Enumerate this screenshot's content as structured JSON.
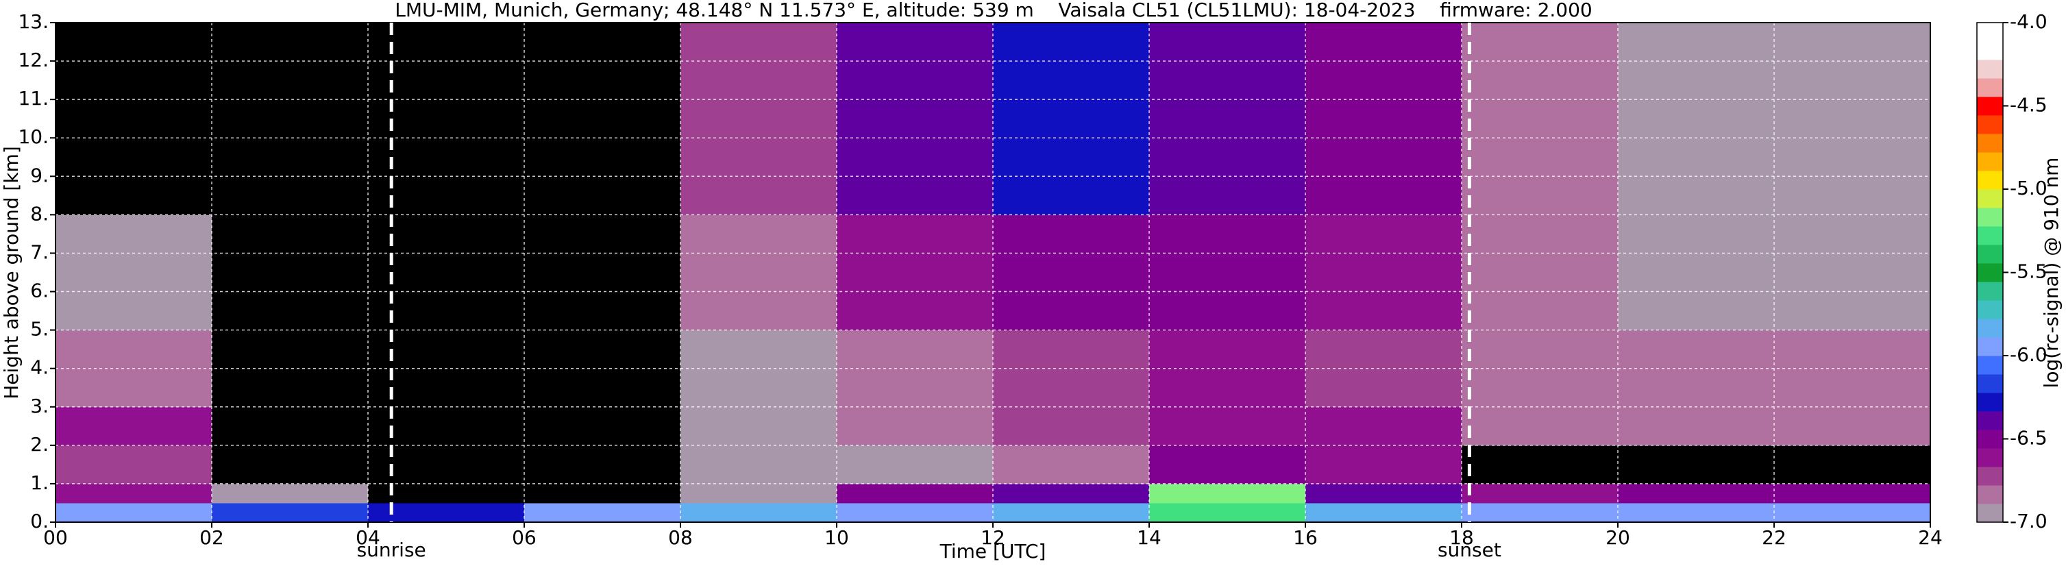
{
  "chart_data": {
    "type": "heatmap",
    "title": "LMU-MIM, Munich, Germany; 48.148° N 11.573° E, altitude: 539 m    Vaisala CL51 (CL51LMU): 18-04-2023    firmware: 2.000",
    "x_label": "Time [UTC]",
    "y_label": "Height above ground [km]",
    "colorbar_label": "log(rc-signal) @ 910 nm",
    "xlim": [
      0,
      24
    ],
    "ylim": [
      0,
      13
    ],
    "xticks": [
      {
        "value": 0,
        "label": "00"
      },
      {
        "value": 2,
        "label": "02"
      },
      {
        "value": 4,
        "label": "04"
      },
      {
        "value": 6,
        "label": "06"
      },
      {
        "value": 8,
        "label": "08"
      },
      {
        "value": 10,
        "label": "10"
      },
      {
        "value": 12,
        "label": "12"
      },
      {
        "value": 14,
        "label": "14"
      },
      {
        "value": 16,
        "label": "16"
      },
      {
        "value": 18,
        "label": "18"
      },
      {
        "value": 20,
        "label": "20"
      },
      {
        "value": 22,
        "label": "22"
      },
      {
        "value": 24,
        "label": "24"
      }
    ],
    "yticks": [
      {
        "value": 0,
        "label": "0."
      },
      {
        "value": 1,
        "label": "1."
      },
      {
        "value": 2,
        "label": "2."
      },
      {
        "value": 3,
        "label": "3."
      },
      {
        "value": 4,
        "label": "4."
      },
      {
        "value": 5,
        "label": "5."
      },
      {
        "value": 6,
        "label": "6."
      },
      {
        "value": 7,
        "label": "7."
      },
      {
        "value": 8,
        "label": "8."
      },
      {
        "value": 9,
        "label": "9."
      },
      {
        "value": 10,
        "label": "10."
      },
      {
        "value": 11,
        "label": "11."
      },
      {
        "value": 12,
        "label": "12."
      },
      {
        "value": 13,
        "label": "13."
      }
    ],
    "clim": [
      -7,
      -4
    ],
    "cticks": [
      {
        "value": -4,
        "label": "-4.0"
      },
      {
        "value": -4.5,
        "label": "-4.5"
      },
      {
        "value": -5,
        "label": "-5.0"
      },
      {
        "value": -5.5,
        "label": "-5.5"
      },
      {
        "value": -6,
        "label": "-6.0"
      },
      {
        "value": -6.5,
        "label": "-6.5"
      },
      {
        "value": -7,
        "label": "-7.0"
      }
    ],
    "colormap": [
      "#a896aa",
      "#b070a0",
      "#a04090",
      "#901090",
      "#800090",
      "#6000a0",
      "#1010c0",
      "#2040e0",
      "#4070ff",
      "#80a0ff",
      "#60b0f0",
      "#40c0c0",
      "#30c090",
      "#10a030",
      "#20c060",
      "#40e080",
      "#80f080",
      "#d0f040",
      "#ffe000",
      "#ffb000",
      "#ff8000",
      "#ff4000",
      "#ff0000",
      "#f0a0a0",
      "#f0d0d0",
      "#ffffff",
      "#ffffff"
    ],
    "under_color": "#000000",
    "x_bins": [
      0,
      2,
      4,
      6,
      8,
      10,
      12,
      14,
      16,
      18,
      20,
      22,
      24
    ],
    "y_bins": [
      0,
      0.5,
      1,
      2,
      3,
      5,
      8,
      13
    ],
    "values": [
      [
        -6.0,
        -6.2,
        -6.3,
        -6.0,
        -5.8,
        -5.9,
        -5.8,
        -5.3,
        -5.8,
        -6.0,
        -6.0,
        -5.9
      ],
      [
        -6.6,
        -6.9,
        -7.3,
        -7.2,
        -6.9,
        -6.5,
        -6.4,
        -5.2,
        -6.4,
        -6.6,
        -6.5,
        -6.5
      ],
      [
        -6.7,
        -7.3,
        -7.3,
        -7.2,
        -7.0,
        -6.9,
        -6.8,
        -6.5,
        -6.6,
        -7.3,
        -7.3,
        -7.3
      ],
      [
        -6.6,
        -7.3,
        -7.3,
        -7.2,
        -6.9,
        -6.8,
        -6.7,
        -6.6,
        -6.6,
        -6.8,
        -6.8,
        -6.8
      ],
      [
        -6.8,
        -7.3,
        -7.3,
        -7.1,
        -6.9,
        -6.8,
        -6.7,
        -6.6,
        -6.7,
        -6.8,
        -6.8,
        -6.8
      ],
      [
        -7.0,
        -7.3,
        -7.3,
        -7.2,
        -6.8,
        -6.6,
        -6.5,
        -6.5,
        -6.6,
        -6.8,
        -6.9,
        -6.9
      ],
      [
        -7.1,
        -7.3,
        -7.3,
        -7.2,
        -6.7,
        -6.4,
        -6.3,
        -6.4,
        -6.5,
        -6.8,
        -6.9,
        -6.9
      ]
    ],
    "grid": true,
    "annotations": [
      {
        "text": "sunrise",
        "x": 4.3
      },
      {
        "text": "sunset",
        "x": 18.1
      }
    ]
  }
}
